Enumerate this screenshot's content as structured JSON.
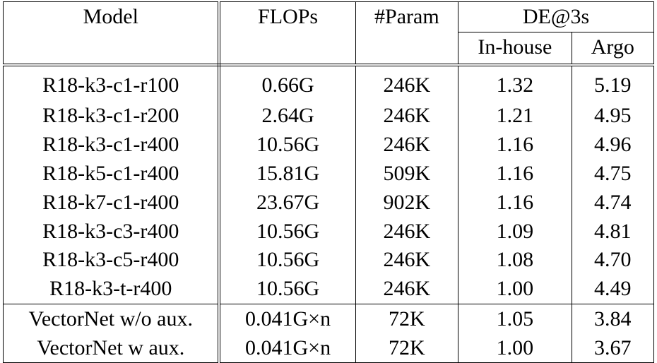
{
  "header": {
    "model": "Model",
    "flops": "FLOPs",
    "param": "#Param",
    "de": "DE@3s",
    "inhouse": "In-house",
    "argo": "Argo"
  },
  "rows": [
    {
      "model": "R18-k3-c1-r100",
      "flops": "0.66G",
      "param": "246K",
      "inhouse": "1.32",
      "argo": "5.19"
    },
    {
      "model": "R18-k3-c1-r200",
      "flops": "2.64G",
      "param": "246K",
      "inhouse": "1.21",
      "argo": "4.95"
    },
    {
      "model": "R18-k3-c1-r400",
      "flops": "10.56G",
      "param": "246K",
      "inhouse": "1.16",
      "argo": "4.96"
    },
    {
      "model": "R18-k5-c1-r400",
      "flops": "15.81G",
      "param": "509K",
      "inhouse": "1.16",
      "argo": "4.75"
    },
    {
      "model": "R18-k7-c1-r400",
      "flops": "23.67G",
      "param": "902K",
      "inhouse": "1.16",
      "argo": "4.74"
    },
    {
      "model": "R18-k3-c3-r400",
      "flops": "10.56G",
      "param": "246K",
      "inhouse": "1.09",
      "argo": "4.81"
    },
    {
      "model": "R18-k3-c5-r400",
      "flops": "10.56G",
      "param": "246K",
      "inhouse": "1.08",
      "argo": "4.70"
    },
    {
      "model": "R18-k3-t-r400",
      "flops": "10.56G",
      "param": "246K",
      "inhouse": "1.00",
      "argo": "4.49"
    }
  ],
  "vectornet_rows": [
    {
      "model": "VectorNet w/o aux.",
      "flops": "0.041G×n",
      "param": "72K",
      "inhouse": "1.05",
      "argo": "3.84"
    },
    {
      "model": "VectorNet w aux.",
      "flops": "0.041G×n",
      "param": "72K",
      "inhouse": "1.00",
      "argo": "3.67"
    }
  ]
}
